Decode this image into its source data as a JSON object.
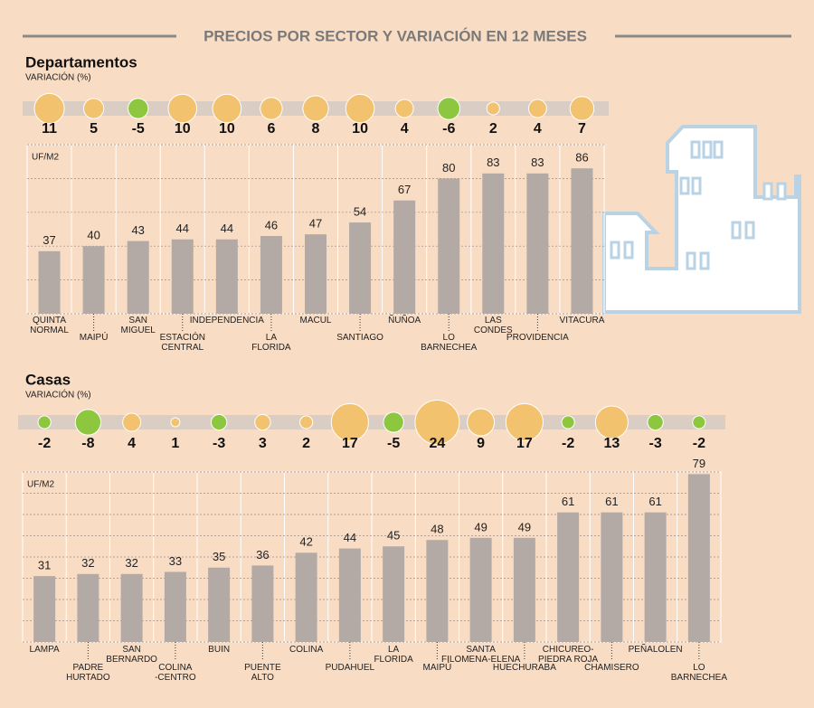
{
  "title": "PRECIOS POR SECTOR Y VARIACIÓN EN 12 MESES",
  "chart_data": [
    {
      "type": "bar",
      "title": "Departamentos",
      "subtitle": "VARIACIÓN (%)",
      "y_label": "UF/M2",
      "categories": [
        "QUINTA\nNORMAL",
        "MAIPÚ",
        "SAN\nMIGUEL",
        "ESTACIÓN\nCENTRAL",
        "INDEPENDENCIA",
        "LA\nFLORIDA",
        "MACUL",
        "SANTIAGO",
        "ÑUÑOA",
        "LO\nBARNECHEA",
        "LAS\nCONDES",
        "PROVIDENCIA",
        "VITACURA"
      ],
      "values": [
        37,
        40,
        43,
        44,
        44,
        46,
        47,
        54,
        67,
        80,
        83,
        83,
        86
      ],
      "variation": [
        11,
        5,
        -5,
        10,
        10,
        6,
        8,
        10,
        4,
        -6,
        2,
        4,
        7
      ],
      "color": "#b3aaa6",
      "positive_color": "#f2c26f",
      "negative_color": "#8dc63f",
      "ylim": [
        0,
        100
      ],
      "yticks": [
        0,
        20,
        40,
        60,
        80,
        100
      ],
      "grid": true
    },
    {
      "type": "bar",
      "title": "Casas",
      "subtitle": "VARIACIÓN (%)",
      "y_label": "UF/M2",
      "categories": [
        "LAMPA",
        "PADRE\nHURTADO",
        "SAN\nBERNARDO",
        "COLINA\n-CENTRO",
        "BUIN",
        "PUENTE\nALTO",
        "COLINA",
        "PUDAHUEL",
        "LA\nFLORIDA",
        "MAIPÚ",
        "SANTA\nFILOMENA-ELENA",
        "HUECHURABA",
        "CHICUREO-\nPIEDRA ROJA",
        "CHAMISERO",
        "PEÑALOLEN",
        "LO\nBARNECHEA"
      ],
      "values": [
        31,
        32,
        32,
        33,
        35,
        36,
        42,
        44,
        45,
        48,
        49,
        49,
        61,
        61,
        61,
        79
      ],
      "variation": [
        -2,
        -8,
        4,
        1,
        -3,
        3,
        2,
        17,
        -5,
        24,
        9,
        17,
        -2,
        13,
        -3,
        -2
      ],
      "color": "#b3aaa6",
      "positive_color": "#f2c26f",
      "negative_color": "#8dc63f",
      "ylim": [
        0,
        80
      ],
      "yticks": [
        0,
        10,
        20,
        30,
        40,
        50,
        60,
        70,
        80
      ],
      "grid": true
    }
  ]
}
